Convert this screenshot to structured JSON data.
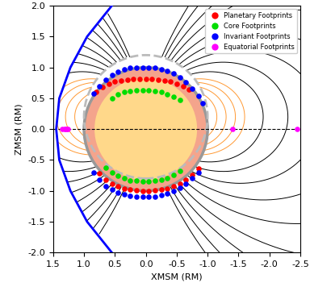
{
  "chart_data": {
    "type": "scatter",
    "x_label": "XMSM (RM)",
    "y_label": "ZMSM (RM)",
    "xlim": [
      1.5,
      -2.5
    ],
    "ylim": [
      -2.0,
      2.0
    ],
    "xticks": [
      1.5,
      1.0,
      0.5,
      0.0,
      -0.5,
      -1.0,
      -1.5,
      -2.0,
      -2.5
    ],
    "yticks": [
      -2.0,
      -1.5,
      -1.0,
      -0.5,
      0.0,
      0.5,
      1.0,
      1.5,
      2.0
    ],
    "legend": "upper right",
    "series": [
      {
        "name": "Planetary Footprints",
        "color": "red",
        "type": "scatter",
        "marker": "o",
        "x": [
          0.8,
          0.7,
          0.6,
          0.5,
          0.4,
          0.3,
          0.2,
          0.1,
          0.0,
          -0.1,
          -0.2,
          -0.3,
          -0.4,
          -0.5,
          -0.6,
          -0.7,
          0.75,
          0.65,
          0.55,
          0.45,
          0.35,
          0.25,
          0.15,
          0.05,
          -0.05,
          -0.15,
          -0.25,
          -0.35,
          -0.45,
          -0.55,
          -0.65,
          -0.75,
          -0.85
        ],
        "y": [
          0.6,
          0.68,
          0.74,
          0.77,
          0.79,
          0.8,
          0.81,
          0.81,
          0.81,
          0.81,
          0.8,
          0.79,
          0.77,
          0.74,
          0.7,
          0.64,
          -0.72,
          -0.82,
          -0.88,
          -0.93,
          -0.96,
          -0.98,
          -0.99,
          -1.0,
          -1.0,
          -0.99,
          -0.98,
          -0.96,
          -0.93,
          -0.88,
          -0.82,
          -0.74,
          -0.64
        ]
      },
      {
        "name": "Core Footprints",
        "color": "#00dd00",
        "type": "scatter",
        "marker": "o",
        "x": [
          0.55,
          0.45,
          0.35,
          0.25,
          0.15,
          0.05,
          -0.05,
          -0.15,
          -0.25,
          -0.35,
          -0.45,
          -0.55,
          0.65,
          0.55,
          0.45,
          0.35,
          0.25,
          0.15,
          0.05,
          -0.05,
          -0.15,
          -0.25,
          -0.35,
          -0.45,
          -0.55
        ],
        "y": [
          0.5,
          0.56,
          0.6,
          0.62,
          0.63,
          0.63,
          0.63,
          0.62,
          0.6,
          0.57,
          0.53,
          0.47,
          -0.62,
          -0.7,
          -0.76,
          -0.8,
          -0.83,
          -0.84,
          -0.85,
          -0.85,
          -0.84,
          -0.82,
          -0.79,
          -0.74,
          -0.68
        ]
      },
      {
        "name": "Invariant Footprints",
        "color": "blue",
        "type": "scatter",
        "marker": "o",
        "x": [
          0.85,
          0.75,
          0.65,
          0.55,
          0.45,
          0.35,
          0.25,
          0.15,
          0.05,
          -0.05,
          -0.15,
          -0.25,
          -0.35,
          -0.45,
          -0.55,
          -0.65,
          -0.75,
          -0.85,
          -0.92,
          0.85,
          0.75,
          0.65,
          0.55,
          0.45,
          0.35,
          0.25,
          0.15,
          0.05,
          -0.05,
          -0.15,
          -0.25,
          -0.35,
          -0.45,
          -0.55,
          -0.65,
          -0.75,
          -0.85
        ],
        "y": [
          0.58,
          0.7,
          0.8,
          0.88,
          0.93,
          0.97,
          0.99,
          1.0,
          1.0,
          1.0,
          0.99,
          0.97,
          0.94,
          0.9,
          0.84,
          0.76,
          0.66,
          0.54,
          0.42,
          -0.7,
          -0.82,
          -0.92,
          -0.98,
          -1.03,
          -1.06,
          -1.08,
          -1.09,
          -1.1,
          -1.1,
          -1.09,
          -1.07,
          -1.04,
          -1.0,
          -0.95,
          -0.88,
          -0.8,
          -0.7
        ]
      },
      {
        "name": "Equatorial Footprints",
        "color": "magenta",
        "type": "scatter",
        "marker": "o",
        "x": [
          1.35,
          1.32,
          1.3,
          1.28,
          1.26,
          -1.4,
          -2.45
        ],
        "y": [
          0.0,
          0.0,
          0.0,
          0.0,
          0.0,
          0.0,
          0.0
        ]
      },
      {
        "color": "blue",
        "type": "line",
        "line_style": "solid",
        "x": [
          0.55,
          0.95,
          1.22,
          1.4,
          1.45,
          1.4,
          1.22,
          0.95,
          0.55
        ],
        "y": [
          -2.0,
          -1.5,
          -1.0,
          -0.5,
          0.0,
          0.5,
          1.0,
          1.5,
          2.0
        ]
      }
    ]
  }
}
